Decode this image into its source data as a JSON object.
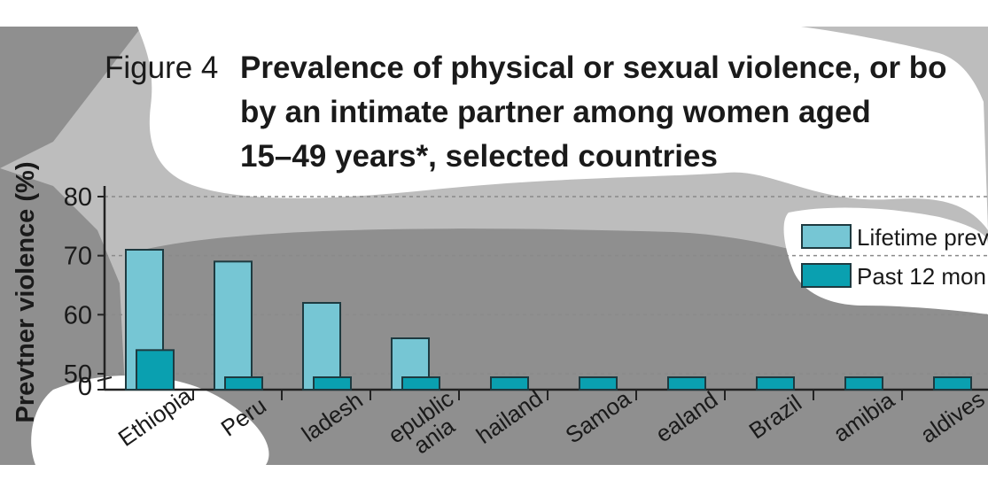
{
  "figure": {
    "label": "Figure 4",
    "title_lines": [
      "Prevalence of physical or sexual violence, or bo",
      "by an intimate partner among women aged",
      "15–49 years*, selected countries"
    ]
  },
  "colors": {
    "lifetime": "#76c6d4",
    "past12": "#0aa0b0",
    "bar_stroke": "#1e3a40",
    "axis": "#222222",
    "grid": "#8a8a8a",
    "overlay_dark": "#8f8f8f",
    "overlay_light": "#bdbdbd"
  },
  "chart_data": {
    "type": "bar",
    "ylabel": "Prevtner violence (%)",
    "yticks": [
      "80",
      "70",
      "60",
      "50",
      "0"
    ],
    "ytick_values": [
      80,
      70,
      60,
      50,
      0
    ],
    "axis_break": true,
    "grid": true,
    "legend_position": "top-right",
    "categories": [
      "Ethiopia",
      "Peru",
      "ladesh",
      "epublic ania",
      "hailand",
      "Samoa",
      "ealand",
      "Brazil",
      "amibia",
      "aldives"
    ],
    "series": [
      {
        "name": "Lifetime prev",
        "values": [
          71,
          69,
          62,
          56,
          null,
          null,
          null,
          null,
          null,
          null
        ]
      },
      {
        "name": "Past 12 mon",
        "values": [
          54,
          null,
          null,
          null,
          null,
          null,
          null,
          null,
          null,
          null
        ]
      }
    ]
  }
}
